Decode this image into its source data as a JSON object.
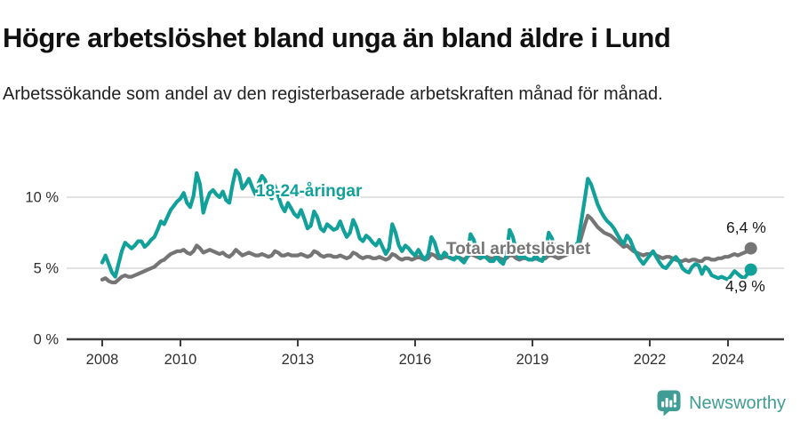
{
  "header": {
    "title": "Högre arbetslöshet bland unga än bland äldre i Lund",
    "subtitle": "Arbetssökande som andel av den registerbaserade arbetskraften månad för månad."
  },
  "chart_data": {
    "type": "line",
    "x_start_year": 2008,
    "points_per_year": 12,
    "x_tick_years": [
      2008,
      2010,
      2013,
      2016,
      2019,
      2022,
      2024
    ],
    "x_tick_labels": [
      "2008",
      "2010",
      "2013",
      "2016",
      "2019",
      "2022",
      "2024"
    ],
    "y_ticks": [
      {
        "value": 0,
        "label": "0 %"
      },
      {
        "value": 5,
        "label": "5 %"
      },
      {
        "value": 10,
        "label": "10 %"
      }
    ],
    "ylim": [
      0,
      12.4
    ],
    "grid": "horizontal",
    "legend_position": "inline",
    "series": [
      {
        "name": "18-24-åringar",
        "color": "#12a19a",
        "end_label": "4,9 %",
        "end_value": 4.9,
        "values": [
          5.4,
          5.9,
          5.3,
          4.7,
          4.4,
          5.3,
          6.2,
          6.8,
          6.6,
          6.4,
          6.6,
          6.9,
          6.9,
          6.5,
          6.7,
          7.0,
          7.2,
          7.7,
          8.3,
          8.1,
          8.6,
          9.1,
          9.4,
          9.7,
          9.9,
          10.3,
          9.6,
          9.3,
          10.1,
          11.7,
          10.9,
          8.9,
          9.7,
          10.3,
          10.5,
          10.2,
          10.0,
          10.4,
          9.8,
          9.6,
          10.9,
          11.9,
          11.6,
          10.6,
          10.9,
          11.3,
          10.7,
          10.2,
          11.0,
          11.5,
          11.2,
          10.2,
          9.9,
          10.8,
          10.1,
          9.4,
          9.0,
          9.6,
          9.2,
          8.8,
          8.6,
          9.1,
          8.5,
          7.8,
          8.0,
          9.0,
          8.6,
          7.8,
          7.6,
          8.1,
          7.9,
          7.7,
          7.8,
          8.3,
          7.7,
          7.2,
          7.5,
          8.4,
          7.9,
          7.1,
          6.9,
          7.3,
          7.1,
          6.8,
          6.6,
          7.0,
          6.5,
          6.0,
          6.4,
          8.1,
          7.5,
          6.6,
          6.2,
          6.6,
          6.4,
          6.1,
          5.9,
          6.3,
          5.9,
          5.6,
          6.0,
          7.2,
          6.8,
          6.0,
          5.7,
          6.1,
          5.9,
          5.7,
          5.6,
          5.9,
          5.6,
          5.4,
          5.8,
          7.4,
          7.0,
          6.1,
          5.7,
          5.9,
          5.7,
          5.5,
          5.5,
          5.8,
          5.5,
          5.3,
          5.9,
          7.7,
          7.2,
          6.2,
          5.7,
          5.9,
          5.7,
          5.6,
          5.6,
          5.9,
          5.6,
          5.5,
          6.1,
          7.5,
          7.1,
          6.3,
          6.0,
          6.2,
          6.1,
          6.2,
          6.4,
          6.6,
          6.8,
          8.3,
          9.8,
          11.3,
          10.9,
          10.2,
          9.5,
          9.0,
          8.6,
          8.3,
          8.1,
          7.8,
          7.4,
          7.0,
          6.7,
          7.3,
          7.0,
          6.4,
          6.0,
          5.6,
          5.3,
          5.6,
          5.9,
          6.2,
          5.8,
          5.4,
          5.1,
          5.0,
          5.3,
          5.6,
          5.8,
          5.5,
          5.0,
          4.8,
          4.7,
          5.1,
          5.3,
          5.2,
          4.6,
          5.1,
          4.9,
          4.5,
          4.4,
          4.3,
          4.4,
          4.3,
          4.2,
          4.5,
          4.8,
          4.6,
          4.4,
          4.3,
          4.6,
          4.9
        ]
      },
      {
        "name": "Total arbetslöshet",
        "color": "#757575",
        "end_label": "6,4 %",
        "end_value": 6.4,
        "values": [
          4.2,
          4.3,
          4.1,
          4.0,
          4.0,
          4.2,
          4.4,
          4.5,
          4.4,
          4.4,
          4.5,
          4.6,
          4.7,
          4.8,
          4.9,
          5.0,
          5.1,
          5.3,
          5.5,
          5.6,
          5.8,
          6.0,
          6.1,
          6.2,
          6.2,
          6.3,
          6.1,
          6.0,
          6.2,
          6.6,
          6.4,
          6.1,
          6.2,
          6.3,
          6.2,
          6.1,
          6.0,
          6.1,
          5.9,
          5.8,
          6.0,
          6.3,
          6.1,
          5.9,
          6.0,
          6.1,
          6.0,
          5.9,
          5.9,
          6.0,
          5.9,
          5.8,
          5.9,
          6.2,
          6.1,
          5.9,
          5.9,
          6.0,
          5.9,
          5.9,
          5.9,
          6.0,
          5.9,
          5.8,
          5.9,
          6.2,
          6.1,
          5.9,
          5.8,
          5.9,
          5.9,
          5.8,
          5.8,
          5.9,
          5.8,
          5.7,
          5.8,
          6.1,
          6.0,
          5.8,
          5.7,
          5.8,
          5.8,
          5.7,
          5.7,
          5.8,
          5.7,
          5.6,
          5.7,
          6.0,
          5.9,
          5.7,
          5.6,
          5.7,
          5.7,
          5.6,
          5.7,
          5.8,
          5.7,
          5.6,
          5.7,
          6.0,
          5.9,
          5.7,
          5.7,
          5.8,
          5.8,
          5.7,
          5.7,
          5.8,
          5.7,
          5.6,
          5.8,
          6.0,
          5.9,
          5.8,
          5.7,
          5.8,
          5.8,
          5.7,
          5.7,
          5.8,
          5.7,
          5.6,
          5.7,
          5.9,
          5.9,
          5.7,
          5.6,
          5.7,
          5.7,
          5.6,
          5.6,
          5.7,
          5.6,
          5.6,
          5.7,
          5.9,
          5.9,
          5.8,
          5.7,
          5.8,
          5.9,
          6.0,
          6.1,
          6.2,
          6.4,
          7.2,
          8.0,
          8.7,
          8.5,
          8.2,
          7.9,
          7.7,
          7.5,
          7.4,
          7.3,
          7.1,
          6.9,
          6.7,
          6.5,
          6.6,
          6.4,
          6.2,
          6.1,
          6.0,
          5.9,
          6.0,
          6.0,
          6.1,
          5.9,
          5.8,
          5.7,
          5.8,
          5.8,
          5.7,
          5.6,
          5.5,
          5.5,
          5.6,
          5.5,
          5.6,
          5.6,
          5.5,
          5.5,
          5.7,
          5.7,
          5.6,
          5.6,
          5.7,
          5.7,
          5.8,
          5.8,
          5.9,
          6.0,
          5.9,
          6.0,
          6.1,
          6.2,
          6.4
        ]
      }
    ]
  },
  "footer": {
    "brand": "Newsworthy",
    "brand_color": "#3f9d95",
    "logo_icon": "speech-bubble-bar-chart-icon"
  }
}
